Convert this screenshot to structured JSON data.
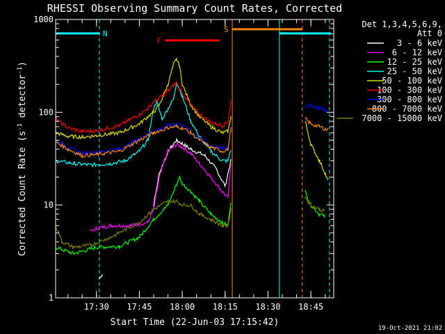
{
  "chart_data": {
    "type": "line",
    "title": "RHESSI Observing Summary Count Rates, Corrected",
    "xlabel": "Start Time (22-Jun-03 17:15:42)",
    "ylabel": "Corrected Count Rate (s",
    "ylabel_sup1": "-1",
    "ylabel_mid": " detector",
    "ylabel_sup2": "-1",
    "ylabel_end": ")",
    "y_scale": "log",
    "ylim": [
      1,
      1000
    ],
    "xlim": [
      "17:15:42",
      "18:53:00"
    ],
    "x_ticks": [
      "17:30",
      "17:45",
      "18:00",
      "18:15",
      "18:30",
      "18:45"
    ],
    "y_ticks": [
      "1",
      "10",
      "100",
      "1000"
    ],
    "grid": false,
    "legend_header": [
      "Det 1,3,4,5,6,9,",
      "Att 0"
    ],
    "footer": "19-Oct-2021 21:02",
    "annotations": [
      {
        "text": "N",
        "color": "#00ffff",
        "segments": [
          [
            "17:15:42",
            "17:31:00"
          ],
          [
            "18:34:00",
            "18:52:00"
          ]
        ]
      },
      {
        "text": "F",
        "color": "#ff0000",
        "segments": [
          [
            "17:54:00",
            "18:13:00"
          ]
        ]
      },
      {
        "text": "S",
        "color": "#ff8800",
        "segments": [
          [
            "18:17:30",
            "18:42:00"
          ]
        ]
      }
    ],
    "vertical_lines": [
      {
        "time": "17:31:00",
        "color": "#00ffff",
        "style": "dashed"
      },
      {
        "time": "18:17:30",
        "color": "#ff8800",
        "style": "solid"
      },
      {
        "time": "18:34:00",
        "color": "#00ffff",
        "style": "solid"
      },
      {
        "time": "18:42:00",
        "color": "#ff8800",
        "style": "dashed"
      },
      {
        "time": "18:51:30",
        "color": "#00ffff",
        "style": "dashed"
      }
    ],
    "series": [
      {
        "name": "3 - 6 keV",
        "color": "#ffffff",
        "points": [
          [
            "17:31:00",
            1.6
          ],
          [
            "17:32:00",
            1.8
          ],
          [
            "17:50:00",
            10
          ],
          [
            "17:52:00",
            22
          ],
          [
            "17:55:00",
            38
          ],
          [
            "17:58:00",
            50
          ],
          [
            "18:00:00",
            46
          ],
          [
            "18:03:00",
            40
          ],
          [
            "18:08:00",
            34
          ],
          [
            "18:12:00",
            24
          ],
          [
            "18:15:00",
            16
          ],
          [
            "18:17:00",
            30
          ]
        ]
      },
      {
        "name": "6 - 12 keV",
        "color": "#ff00ff",
        "points": [
          [
            "17:28:00",
            5.2
          ],
          [
            "17:30:00",
            5.6
          ],
          [
            "17:35:00",
            6
          ],
          [
            "17:42:00",
            6
          ],
          [
            "17:48:00",
            6.5
          ],
          [
            "17:50:00",
            9
          ],
          [
            "17:52:00",
            20
          ],
          [
            "17:55:00",
            38
          ],
          [
            "17:58:00",
            45
          ],
          [
            "18:00:00",
            42
          ],
          [
            "18:03:00",
            36
          ],
          [
            "18:06:00",
            28
          ],
          [
            "18:10:00",
            20
          ],
          [
            "18:14:00",
            14
          ],
          [
            "18:16:00",
            12
          ],
          [
            "18:17:00",
            28
          ]
        ]
      },
      {
        "name": "12 - 25 keV",
        "color": "#00ff00",
        "points": [
          [
            "17:15:42",
            3.5
          ],
          [
            "17:22:00",
            3
          ],
          [
            "17:30:00",
            3.5
          ],
          [
            "17:38:00",
            3.6
          ],
          [
            "17:45:00",
            4.5
          ],
          [
            "17:50:00",
            7
          ],
          [
            "17:55:00",
            10
          ],
          [
            "17:57:00",
            14
          ],
          [
            "17:59:00",
            20
          ],
          [
            "18:00:00",
            17
          ],
          [
            "18:03:00",
            14
          ],
          [
            "18:06:00",
            11
          ],
          [
            "18:10:00",
            8
          ],
          [
            "18:14:00",
            6.5
          ],
          [
            "18:16:00",
            6
          ],
          [
            "18:17:00",
            11
          ],
          [
            "18:43:00",
            14
          ],
          [
            "18:45:00",
            10
          ],
          [
            "18:48:00",
            8
          ],
          [
            "18:50:00",
            7.5
          ]
        ]
      },
      {
        "name": "25 - 50 keV",
        "color": "#00ffff",
        "points": [
          [
            "17:15:42",
            30
          ],
          [
            "17:22:00",
            28
          ],
          [
            "17:28:00",
            27
          ],
          [
            "17:35:00",
            28
          ],
          [
            "17:40:00",
            30
          ],
          [
            "17:45:00",
            38
          ],
          [
            "17:48:00",
            50
          ],
          [
            "17:50:00",
            110
          ],
          [
            "17:51:00",
            130
          ],
          [
            "17:53:00",
            85
          ],
          [
            "17:55:00",
            110
          ],
          [
            "17:57:00",
            140
          ],
          [
            "17:58:00",
            210
          ],
          [
            "18:00:00",
            150
          ],
          [
            "18:03:00",
            80
          ],
          [
            "18:06:00",
            55
          ],
          [
            "18:10:00",
            38
          ],
          [
            "18:14:00",
            30
          ],
          [
            "18:16:00",
            30
          ],
          [
            "18:17:00",
            40
          ]
        ]
      },
      {
        "name": "50 - 100 keV",
        "color": "#dddd00",
        "points": [
          [
            "17:15:42",
            60
          ],
          [
            "17:20:00",
            55
          ],
          [
            "17:25:00",
            54
          ],
          [
            "17:30:00",
            56
          ],
          [
            "17:38:00",
            60
          ],
          [
            "17:45:00",
            75
          ],
          [
            "17:48:00",
            90
          ],
          [
            "17:50:00",
            100
          ],
          [
            "17:52:00",
            120
          ],
          [
            "17:55:00",
            200
          ],
          [
            "17:57:00",
            330
          ],
          [
            "17:58:00",
            370
          ],
          [
            "17:59:00",
            320
          ],
          [
            "18:00:00",
            200
          ],
          [
            "18:03:00",
            120
          ],
          [
            "18:06:00",
            90
          ],
          [
            "18:10:00",
            70
          ],
          [
            "18:14:00",
            60
          ],
          [
            "18:16:00",
            62
          ],
          [
            "18:17:00",
            90
          ],
          [
            "18:43:00",
            80
          ],
          [
            "18:45:00",
            45
          ],
          [
            "18:48:00",
            30
          ],
          [
            "18:50:00",
            22
          ],
          [
            "18:51:00",
            18
          ]
        ]
      },
      {
        "name": "100 - 300 keV",
        "color": "#ff0000",
        "points": [
          [
            "17:15:42",
            85
          ],
          [
            "17:20:00",
            68
          ],
          [
            "17:25:00",
            62
          ],
          [
            "17:30:00",
            63
          ],
          [
            "17:38:00",
            72
          ],
          [
            "17:45:00",
            95
          ],
          [
            "17:48:00",
            110
          ],
          [
            "17:50:00",
            130
          ],
          [
            "17:53:00",
            150
          ],
          [
            "17:55:00",
            170
          ],
          [
            "17:58:00",
            210
          ],
          [
            "18:00:00",
            160
          ],
          [
            "18:03:00",
            120
          ],
          [
            "18:06:00",
            95
          ],
          [
            "18:10:00",
            78
          ],
          [
            "18:14:00",
            72
          ],
          [
            "18:16:00",
            78
          ],
          [
            "18:17:00",
            130
          ]
        ]
      },
      {
        "name": "300 - 800 keV",
        "color": "#0000ff",
        "points": [
          [
            "17:15:42",
            50
          ],
          [
            "17:20:00",
            42
          ],
          [
            "17:25:00",
            36
          ],
          [
            "17:30:00",
            37
          ],
          [
            "17:38:00",
            40
          ],
          [
            "17:45:00",
            52
          ],
          [
            "17:50:00",
            62
          ],
          [
            "17:55:00",
            72
          ],
          [
            "17:58:00",
            75
          ],
          [
            "18:00:00",
            72
          ],
          [
            "18:03:00",
            62
          ],
          [
            "18:06:00",
            52
          ],
          [
            "18:10:00",
            44
          ],
          [
            "18:14:00",
            40
          ],
          [
            "18:16:00",
            42
          ],
          [
            "18:17:00",
            70
          ],
          [
            "18:43:00",
            120
          ],
          [
            "18:45:00",
            118
          ],
          [
            "18:48:00",
            112
          ],
          [
            "18:50:00",
            105
          ],
          [
            "18:51:00",
            100
          ]
        ]
      },
      {
        "name": "800 - 7000 keV",
        "color": "#ff8800",
        "points": [
          [
            "17:15:42",
            48
          ],
          [
            "17:20:00",
            40
          ],
          [
            "17:25:00",
            34
          ],
          [
            "17:30:00",
            35
          ],
          [
            "17:38:00",
            38
          ],
          [
            "17:45:00",
            50
          ],
          [
            "17:50:00",
            60
          ],
          [
            "17:55:00",
            68
          ],
          [
            "17:58:00",
            70
          ],
          [
            "18:00:00",
            68
          ],
          [
            "18:03:00",
            60
          ],
          [
            "18:06:00",
            50
          ],
          [
            "18:10:00",
            42
          ],
          [
            "18:14:00",
            38
          ],
          [
            "18:16:00",
            40
          ],
          [
            "18:17:00",
            66
          ],
          [
            "18:43:00",
            85
          ],
          [
            "18:45:00",
            75
          ],
          [
            "18:48:00",
            70
          ],
          [
            "18:50:00",
            66
          ],
          [
            "18:51:00",
            65
          ]
        ]
      },
      {
        "name": "7000 - 15000 keV",
        "color": "#808000",
        "points": [
          [
            "17:15:42",
            6
          ],
          [
            "17:18:00",
            4
          ],
          [
            "17:22:00",
            3.5
          ],
          [
            "17:28:00",
            3.7
          ],
          [
            "17:35:00",
            4.5
          ],
          [
            "17:45:00",
            6.5
          ],
          [
            "17:50:00",
            9
          ],
          [
            "17:55:00",
            11
          ],
          [
            "17:58:00",
            11
          ],
          [
            "18:00:00",
            10
          ],
          [
            "18:03:00",
            10
          ],
          [
            "18:06:00",
            8
          ],
          [
            "18:10:00",
            7
          ],
          [
            "18:14:00",
            6
          ],
          [
            "18:16:00",
            6
          ],
          [
            "18:17:00",
            9
          ],
          [
            "18:43:00",
            12
          ],
          [
            "18:45:00",
            10
          ],
          [
            "18:48:00",
            9
          ],
          [
            "18:50:00",
            8.5
          ]
        ]
      }
    ]
  }
}
